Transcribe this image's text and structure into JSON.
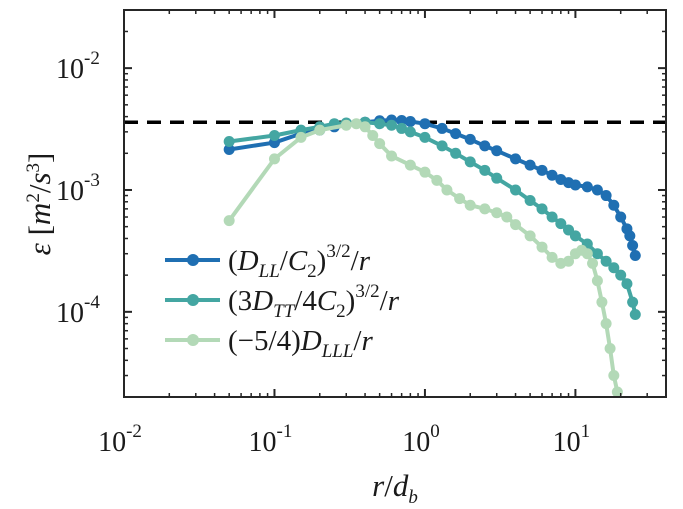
{
  "chart_data": {
    "type": "line",
    "title": "",
    "xscale": "log",
    "yscale": "log",
    "xlim": [
      0.01,
      40
    ],
    "ylim": [
      2e-05,
      0.03
    ],
    "xlabel": "r/d_b",
    "ylabel": "ε [m^2/s^3]",
    "xticks": [
      {
        "base": "10",
        "exp": "-2",
        "value": 0.01
      },
      {
        "base": "10",
        "exp": "-1",
        "value": 0.1
      },
      {
        "base": "10",
        "exp": "0",
        "value": 1
      },
      {
        "base": "10",
        "exp": "1",
        "value": 10
      }
    ],
    "yticks": [
      {
        "base": "10",
        "exp": "-4",
        "value": 0.0001
      },
      {
        "base": "10",
        "exp": "-3",
        "value": 0.001
      },
      {
        "base": "10",
        "exp": "-2",
        "value": 0.01
      }
    ],
    "reference_line": {
      "style": "dashed",
      "color": "#000000",
      "y": 0.0036
    },
    "legend_position": "bottom-left",
    "series": [
      {
        "name": "(D_LL/C_2)^{3/2}/r",
        "color": "#1f6fb2",
        "x": [
          0.05,
          0.1,
          0.15,
          0.2,
          0.25,
          0.3,
          0.4,
          0.5,
          0.6,
          0.7,
          0.8,
          1.0,
          1.3,
          1.6,
          2.0,
          2.5,
          3.0,
          4.0,
          5.0,
          6.0,
          7.0,
          8.0,
          9.0,
          10.0,
          12.0,
          14.0,
          16.0,
          18.0,
          20.0,
          22.0,
          23.0,
          24.0,
          25.0
        ],
        "y": [
          0.00215,
          0.00245,
          0.0029,
          0.0031,
          0.0033,
          0.00345,
          0.0036,
          0.0037,
          0.00375,
          0.00372,
          0.00365,
          0.0035,
          0.0032,
          0.0029,
          0.0026,
          0.0023,
          0.0021,
          0.0018,
          0.0016,
          0.00145,
          0.00132,
          0.00122,
          0.00115,
          0.0011,
          0.00106,
          0.001,
          0.0009,
          0.00075,
          0.0006,
          0.00048,
          0.00042,
          0.00035,
          0.00029
        ]
      },
      {
        "name": "(3D_TT/4C_2)^{3/2}/r",
        "color": "#44a6a2",
        "x": [
          0.05,
          0.1,
          0.15,
          0.2,
          0.25,
          0.3,
          0.4,
          0.5,
          0.6,
          0.7,
          0.8,
          1.0,
          1.3,
          1.6,
          2.0,
          2.5,
          3.0,
          4.0,
          5.0,
          6.0,
          7.0,
          8.0,
          9.0,
          10.0,
          12.0,
          14.0,
          16.0,
          18.0,
          20.0,
          22.0,
          24.0,
          25.0
        ],
        "y": [
          0.0025,
          0.0028,
          0.0031,
          0.0033,
          0.0035,
          0.00355,
          0.0036,
          0.0035,
          0.0034,
          0.0032,
          0.003,
          0.0027,
          0.0023,
          0.002,
          0.0017,
          0.00145,
          0.00125,
          0.001,
          0.00082,
          0.0007,
          0.0006,
          0.00053,
          0.00047,
          0.00042,
          0.00036,
          0.0003,
          0.00026,
          0.00023,
          0.0002,
          0.00017,
          0.00012,
          9.5e-05
        ]
      },
      {
        "name": "(-5/4)D_LLL/r",
        "color": "#b3d9b7",
        "x": [
          0.05,
          0.1,
          0.15,
          0.2,
          0.3,
          0.35,
          0.4,
          0.45,
          0.5,
          0.6,
          0.8,
          1.0,
          1.2,
          1.4,
          1.7,
          2.0,
          2.5,
          3.0,
          3.5,
          4.0,
          5.0,
          6.0,
          7.0,
          8.0,
          9.0,
          10.0,
          11.0,
          12.0,
          13.0,
          14.0,
          15.0,
          16.0,
          17.0,
          18.0,
          19.0
        ],
        "y": [
          0.00056,
          0.0018,
          0.0027,
          0.0031,
          0.0034,
          0.0035,
          0.0033,
          0.0028,
          0.0024,
          0.0019,
          0.0016,
          0.0014,
          0.0012,
          0.001,
          0.00085,
          0.00075,
          0.0007,
          0.00065,
          0.0006,
          0.00052,
          0.00042,
          0.00034,
          0.00028,
          0.00025,
          0.00026,
          0.0003,
          0.00032,
          0.0003,
          0.00025,
          0.00018,
          0.00012,
          8e-05,
          5e-05,
          3e-05,
          2.2e-05
        ]
      }
    ]
  },
  "legend": {
    "items": [
      {
        "pre": "(",
        "a": "D",
        "asub": "LL",
        "mid": "/",
        "b": "C",
        "bsub": "2",
        "post": ")",
        "sup": "3/2",
        "tail": "/",
        "r": "r"
      },
      {
        "pre": "(3",
        "a": "D",
        "asub": "TT",
        "mid": "/4",
        "b": "C",
        "bsub": "2",
        "post": ")",
        "sup": "3/2",
        "tail": "/",
        "r": "r"
      },
      {
        "pre": "(−5/4)",
        "a": "D",
        "asub": "LLL",
        "mid": "",
        "b": "",
        "bsub": "",
        "post": "",
        "sup": "",
        "tail": "/",
        "r": "r"
      }
    ]
  },
  "axes": {
    "ylabel": {
      "eps": "ε",
      "open": " [",
      "m": "m",
      "msup": "2",
      "slash": "/",
      "s": "s",
      "ssup": "3",
      "close": "]"
    },
    "xlabel": {
      "r": "r",
      "slash": "/",
      "d": "d",
      "dsub": "b"
    }
  }
}
